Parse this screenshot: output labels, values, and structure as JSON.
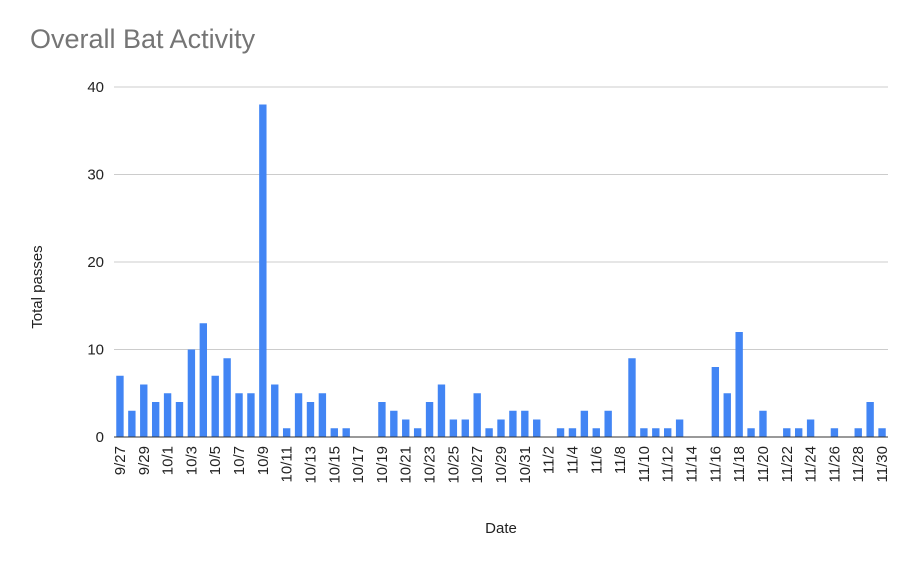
{
  "chart_data": {
    "type": "bar",
    "title": "Overall Bat Activity",
    "xlabel": "Date",
    "ylabel": "Total passes",
    "ylim": [
      0,
      40
    ],
    "yticks": [
      0,
      10,
      20,
      30,
      40
    ],
    "grid": true,
    "legend": "none",
    "bar_color": "#4285f4",
    "categories": [
      "9/27",
      "9/28",
      "9/29",
      "9/30",
      "10/1",
      "10/2",
      "10/3",
      "10/4",
      "10/5",
      "10/6",
      "10/7",
      "10/8",
      "10/9",
      "10/10",
      "10/11",
      "10/12",
      "10/13",
      "10/14",
      "10/15",
      "10/16",
      "10/17",
      "10/18",
      "10/19",
      "10/20",
      "10/21",
      "10/22",
      "10/23",
      "10/24",
      "10/25",
      "10/26",
      "10/27",
      "10/28",
      "10/29",
      "10/30",
      "10/31",
      "11/1",
      "11/2",
      "11/3",
      "11/4",
      "11/5",
      "11/6",
      "11/7",
      "11/8",
      "11/9",
      "11/10",
      "11/11",
      "11/12",
      "11/13",
      "11/14",
      "11/15",
      "11/16",
      "11/17",
      "11/18",
      "11/19",
      "11/20",
      "11/21",
      "11/22",
      "11/23",
      "11/24",
      "11/25",
      "11/26",
      "11/27",
      "11/28",
      "11/29",
      "11/30"
    ],
    "tick_labels": [
      "9/27",
      "9/29",
      "10/1",
      "10/3",
      "10/5",
      "10/7",
      "10/9",
      "10/11",
      "10/13",
      "10/15",
      "10/17",
      "10/19",
      "10/21",
      "10/23",
      "10/25",
      "10/27",
      "10/29",
      "10/31",
      "11/2",
      "11/4",
      "11/6",
      "11/8",
      "11/10",
      "11/12",
      "11/14",
      "11/16",
      "11/18",
      "11/20",
      "11/22",
      "11/24",
      "11/26",
      "11/28",
      "11/30"
    ],
    "values": [
      7,
      3,
      6,
      4,
      5,
      4,
      10,
      13,
      7,
      9,
      5,
      5,
      38,
      6,
      1,
      5,
      4,
      5,
      1,
      1,
      0,
      0,
      4,
      3,
      2,
      1,
      4,
      6,
      2,
      2,
      5,
      1,
      2,
      3,
      3,
      2,
      0,
      1,
      1,
      3,
      1,
      3,
      0,
      9,
      1,
      1,
      1,
      2,
      0,
      0,
      8,
      5,
      12,
      1,
      3,
      0,
      1,
      1,
      2,
      0,
      1,
      0,
      1,
      4,
      1
    ]
  }
}
